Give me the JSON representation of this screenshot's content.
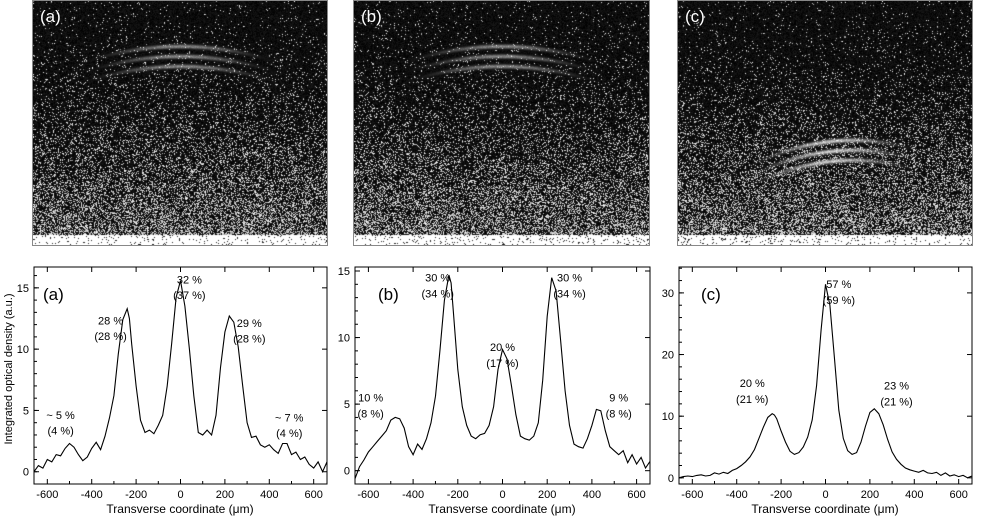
{
  "images": [
    {
      "label": "(a)",
      "fringe_y": 45,
      "fringe_cx": 0.5,
      "fringe_w": 0.62,
      "n_fringes": 3,
      "glow": 0.6
    },
    {
      "label": "(b)",
      "fringe_y": 45,
      "fringe_cx": 0.5,
      "fringe_w": 0.62,
      "n_fringes": 3,
      "glow": 0.6
    },
    {
      "label": "(c)",
      "fringe_y": 140,
      "fringe_cx": 0.52,
      "fringe_w": 0.52,
      "n_fringes": 3,
      "glow": 0.9
    }
  ],
  "ylabel": "Integrated optical density (a.u.)",
  "chart_data": [
    {
      "type": "line",
      "label": "(a)",
      "xlabel": "Transverse coordinate (μm)",
      "ylabel": "Integrated optical density (a.u.)",
      "xlim": [
        -660,
        660
      ],
      "ylim": [
        -1,
        16.7
      ],
      "xticks": [
        -600,
        -400,
        -200,
        0,
        200,
        400,
        600
      ],
      "yticks": [
        0,
        5,
        10,
        15
      ],
      "x": [
        -660,
        -640,
        -620,
        -600,
        -580,
        -560,
        -540,
        -520,
        -500,
        -480,
        -460,
        -440,
        -420,
        -400,
        -380,
        -360,
        -340,
        -320,
        -300,
        -280,
        -260,
        -240,
        -230,
        -220,
        -200,
        -180,
        -160,
        -140,
        -120,
        -100,
        -80,
        -60,
        -40,
        -20,
        0,
        20,
        40,
        60,
        80,
        100,
        120,
        140,
        160,
        180,
        200,
        220,
        240,
        260,
        280,
        300,
        320,
        340,
        360,
        380,
        400,
        420,
        440,
        460,
        480,
        500,
        520,
        540,
        560,
        580,
        600,
        620,
        640,
        660
      ],
      "y": [
        0.0,
        0.5,
        0.3,
        1.0,
        0.8,
        1.4,
        1.3,
        1.9,
        2.3,
        2.0,
        1.4,
        0.9,
        1.2,
        1.9,
        2.4,
        1.8,
        2.9,
        4.4,
        6.2,
        9.6,
        12.4,
        13.3,
        12.5,
        10.4,
        7.0,
        4.2,
        3.2,
        3.4,
        3.1,
        3.8,
        4.6,
        7.0,
        10.4,
        14.2,
        15.6,
        13.5,
        10.0,
        6.2,
        3.2,
        3.0,
        3.4,
        3.0,
        4.6,
        8.5,
        11.4,
        12.7,
        12.2,
        10.2,
        7.0,
        4.0,
        2.8,
        2.9,
        2.2,
        2.0,
        2.2,
        1.8,
        1.5,
        2.3,
        2.3,
        1.4,
        1.6,
        1.0,
        1.2,
        0.6,
        0.3,
        0.8,
        0.0,
        0.8
      ],
      "annotations": [
        {
          "text": "32 %",
          "x": 40,
          "y": 15.35
        },
        {
          "text": "(37 %)",
          "x": 40,
          "y": 14.1
        },
        {
          "text": "28 %",
          "x": -315,
          "y": 12.0
        },
        {
          "text": "(28 %)",
          "x": -315,
          "y": 10.75
        },
        {
          "text": "29 %",
          "x": 310,
          "y": 11.8
        },
        {
          "text": "(28 %)",
          "x": 310,
          "y": 10.55
        },
        {
          "text": "~ 5 %",
          "x": -540,
          "y": 4.3
        },
        {
          "text": "(4 %)",
          "x": -540,
          "y": 3.05
        },
        {
          "text": "~ 7 %",
          "x": 490,
          "y": 4.1
        },
        {
          "text": "(4 %)",
          "x": 490,
          "y": 2.85
        }
      ]
    },
    {
      "type": "line",
      "label": "(b)",
      "xlabel": "Transverse coordinate (μm)",
      "xlim": [
        -660,
        660
      ],
      "ylim": [
        -1,
        15.3
      ],
      "xticks": [
        -600,
        -400,
        -200,
        0,
        200,
        400,
        600
      ],
      "yticks": [
        0,
        5,
        10,
        15
      ],
      "x": [
        -660,
        -640,
        -620,
        -600,
        -580,
        -560,
        -540,
        -520,
        -500,
        -480,
        -460,
        -440,
        -420,
        -400,
        -380,
        -360,
        -340,
        -320,
        -300,
        -280,
        -260,
        -240,
        -230,
        -220,
        -200,
        -180,
        -160,
        -140,
        -120,
        -100,
        -80,
        -60,
        -40,
        -20,
        0,
        20,
        40,
        60,
        80,
        100,
        120,
        140,
        160,
        180,
        200,
        220,
        240,
        260,
        280,
        300,
        320,
        340,
        360,
        380,
        400,
        420,
        440,
        460,
        480,
        500,
        520,
        540,
        560,
        580,
        600,
        620,
        640,
        660
      ],
      "y": [
        -0.6,
        0.3,
        0.8,
        1.4,
        1.8,
        2.2,
        2.6,
        3.0,
        3.8,
        4.0,
        3.9,
        3.2,
        1.8,
        1.2,
        2.0,
        1.6,
        2.4,
        3.6,
        5.6,
        9.0,
        12.8,
        14.7,
        14.1,
        12.0,
        7.6,
        4.8,
        3.4,
        2.6,
        2.4,
        2.7,
        2.8,
        3.4,
        4.8,
        7.6,
        9.1,
        8.4,
        6.4,
        4.2,
        2.6,
        2.4,
        2.3,
        2.6,
        3.6,
        6.8,
        11.6,
        14.5,
        13.5,
        9.8,
        6.0,
        3.4,
        2.0,
        1.8,
        1.7,
        2.4,
        3.4,
        4.6,
        4.5,
        3.0,
        1.8,
        1.5,
        1.2,
        1.5,
        0.6,
        1.2,
        0.5,
        1.0,
        0.2,
        0.7
      ],
      "annotations": [
        {
          "text": "30 %",
          "x": -290,
          "y": 14.2
        },
        {
          "text": "(34 %)",
          "x": -290,
          "y": 13.0
        },
        {
          "text": "20 %",
          "x": 0,
          "y": 9.0
        },
        {
          "text": "(17 %)",
          "x": 0,
          "y": 7.8
        },
        {
          "text": "30 %",
          "x": 300,
          "y": 14.2
        },
        {
          "text": "(34 %)",
          "x": 300,
          "y": 13.0
        },
        {
          "text": "10 %",
          "x": -590,
          "y": 5.2
        },
        {
          "text": "(8 %)",
          "x": -590,
          "y": 4.0
        },
        {
          "text": "9 %",
          "x": 520,
          "y": 5.2
        },
        {
          "text": "(8 %)",
          "x": 520,
          "y": 4.0
        }
      ]
    },
    {
      "type": "line",
      "label": "(c)",
      "xlabel": "Transverse coordinate (μm)",
      "xlim": [
        -660,
        660
      ],
      "ylim": [
        -1,
        34.2
      ],
      "xticks": [
        -600,
        -400,
        -200,
        0,
        200,
        400,
        600
      ],
      "yticks": [
        0,
        10,
        20,
        30
      ],
      "x": [
        -660,
        -640,
        -620,
        -600,
        -580,
        -560,
        -540,
        -520,
        -500,
        -480,
        -460,
        -440,
        -420,
        -400,
        -380,
        -360,
        -340,
        -320,
        -300,
        -280,
        -260,
        -240,
        -230,
        -220,
        -200,
        -180,
        -160,
        -140,
        -120,
        -100,
        -80,
        -60,
        -40,
        -20,
        0,
        20,
        40,
        60,
        80,
        100,
        120,
        140,
        160,
        180,
        200,
        220,
        240,
        260,
        280,
        300,
        320,
        340,
        360,
        380,
        400,
        420,
        440,
        460,
        480,
        500,
        520,
        540,
        560,
        580,
        600,
        620,
        640,
        660
      ],
      "y": [
        0.0,
        0.2,
        0.3,
        0.2,
        0.4,
        0.5,
        0.3,
        0.4,
        0.8,
        0.6,
        0.9,
        0.7,
        1.2,
        1.5,
        2.0,
        2.6,
        3.4,
        4.6,
        6.4,
        8.2,
        9.8,
        10.4,
        10.2,
        9.6,
        7.6,
        5.8,
        4.3,
        3.8,
        4.1,
        5.0,
        6.6,
        9.4,
        15.0,
        24.0,
        31.4,
        28.0,
        19.5,
        11.0,
        6.4,
        4.4,
        3.8,
        4.1,
        5.8,
        8.4,
        10.6,
        11.2,
        10.4,
        8.6,
        6.2,
        4.2,
        3.0,
        2.2,
        1.6,
        1.3,
        1.1,
        0.9,
        1.2,
        0.8,
        0.7,
        0.9,
        0.4,
        0.8,
        0.3,
        0.5,
        0.2,
        0.4,
        0.0,
        0.3
      ],
      "annotations": [
        {
          "text": "57 %",
          "x": 60,
          "y": 30.8
        },
        {
          "text": "(59 %)",
          "x": 60,
          "y": 28.2
        },
        {
          "text": "20 %",
          "x": -330,
          "y": 14.7
        },
        {
          "text": "(21 %)",
          "x": -330,
          "y": 12.1
        },
        {
          "text": "23 %",
          "x": 320,
          "y": 14.3
        },
        {
          "text": "(21 %)",
          "x": 320,
          "y": 11.7
        }
      ]
    }
  ]
}
